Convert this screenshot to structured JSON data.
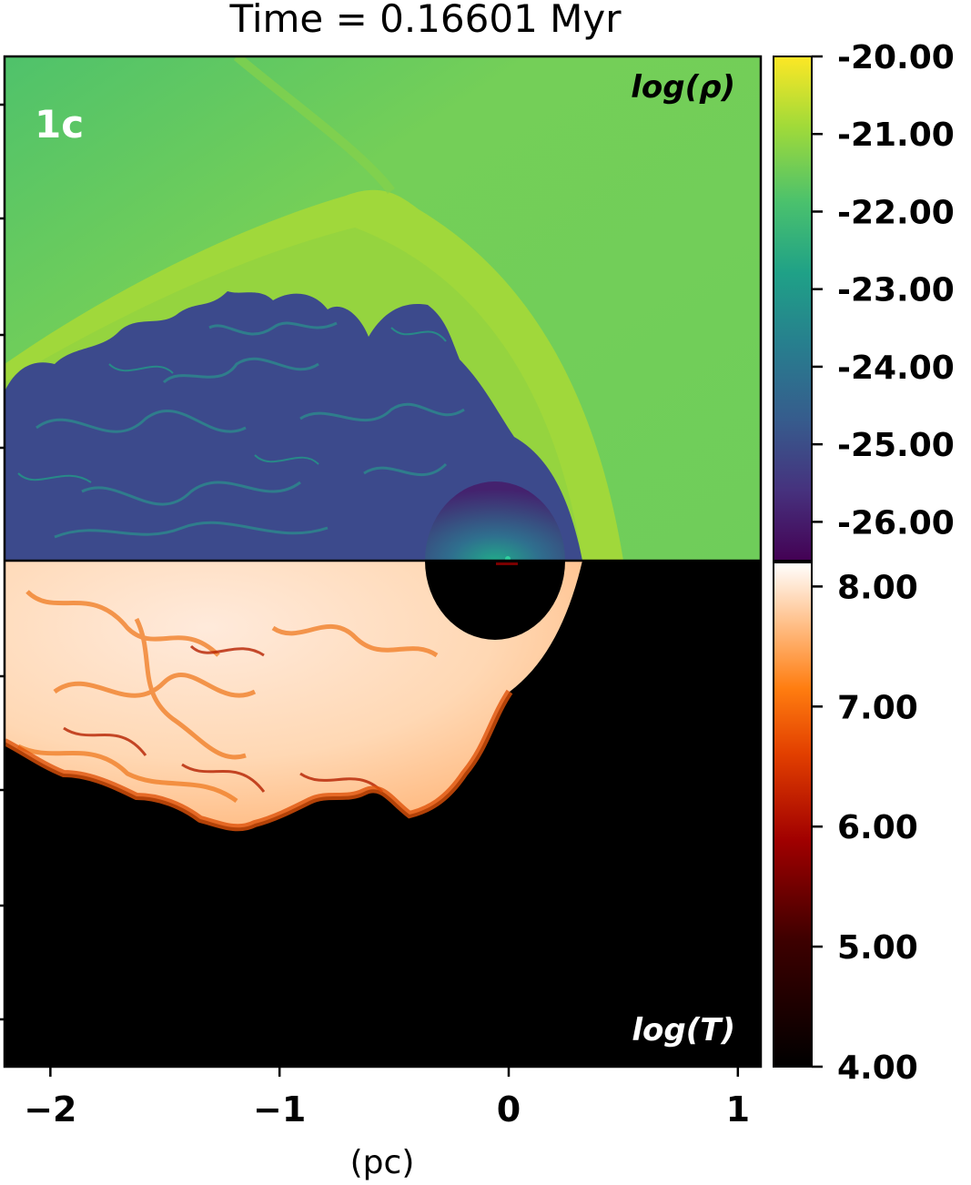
{
  "figure": {
    "title": "Time = 0.16601 Myr",
    "panel_label": "1c",
    "top_field_label": "log(ρ)",
    "bottom_field_label": "log(T)",
    "xlabel": "(pc)"
  },
  "x_axis": {
    "ticks": [
      -2,
      -1,
      0,
      1
    ],
    "tick_labels": [
      "−2",
      "−1",
      "0",
      "1"
    ],
    "range": [
      -2.2,
      1.1
    ]
  },
  "colorbars": {
    "density": {
      "colormap": "viridis",
      "range": [
        -26.5,
        -20.0
      ],
      "ticks": [
        -20,
        -21,
        -22,
        -23,
        -24,
        -25,
        -26
      ],
      "tick_labels": [
        "-20.00",
        "-21.00",
        "-22.00",
        "-23.00",
        "-24.00",
        "-25.00",
        "-26.00"
      ]
    },
    "temperature": {
      "colormap": "gist_heat",
      "range": [
        4.0,
        8.2
      ],
      "ticks": [
        8,
        7,
        6,
        5,
        4
      ],
      "tick_labels": [
        "8.00",
        "7.00",
        "6.00",
        "5.00",
        "4.00"
      ]
    }
  },
  "colors": {
    "ambient_green": "#6fcd5a",
    "shell_green": "#a2d83a",
    "bubble_interior": "#3c4a8c",
    "hot_interior": "#ffe4cc",
    "background_black": "#000000"
  }
}
